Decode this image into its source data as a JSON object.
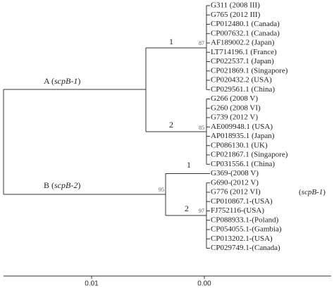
{
  "tree": {
    "leaves": [
      "G311 (2008 III)",
      "G765 (2012 III)",
      "CP012480.1 (Canada)",
      "CP007632.1 (Canada)",
      "AF189002.2 (Japan)",
      "LT714196.1 (France)",
      "CP022537.1 (Japan)",
      "CP021869.1 (Singapore)",
      "CP020432.2 (USA)",
      "CP029561.1 (China)",
      "G266 (2008 V)",
      "G260 (2008 VI)",
      "G739 (2012 V)",
      "AE009948.1 (USA)",
      "AP018935.1 (Japan)",
      "CP086130.1 (UK)",
      "CP021867.1 (Singapore)",
      "CP031556.1 (China)",
      "G369-(2008 V)",
      "G690-(2012 V)",
      "G776 (2012 VI)",
      "CP010867.1-(USA)",
      "FJ752116-(USA)",
      "CP088933.1-(Poland)",
      "CP054055.1-(Gambia)",
      "CP013202.1-(USA)",
      "CP029749.1-(Canada)"
    ],
    "clade_a": {
      "label_parts": [
        "A (",
        "scpB-1",
        ")"
      ],
      "sub1": {
        "label": "1",
        "bootstrap": 87
      },
      "sub2": {
        "label": "2",
        "bootstrap": 85
      }
    },
    "clade_b": {
      "label_parts": [
        "B (",
        "scpB-2",
        ")"
      ],
      "bootstrap": 95,
      "sub1": {
        "label": "1"
      },
      "sub2": {
        "label": "2",
        "bootstrap": 97
      }
    },
    "annotation_parts": [
      "(",
      "scpB-1",
      ")"
    ],
    "scale_ticks": [
      {
        "value": 0.01,
        "label": "0.01"
      },
      {
        "value": 0,
        "label": "0.00"
      }
    ]
  }
}
